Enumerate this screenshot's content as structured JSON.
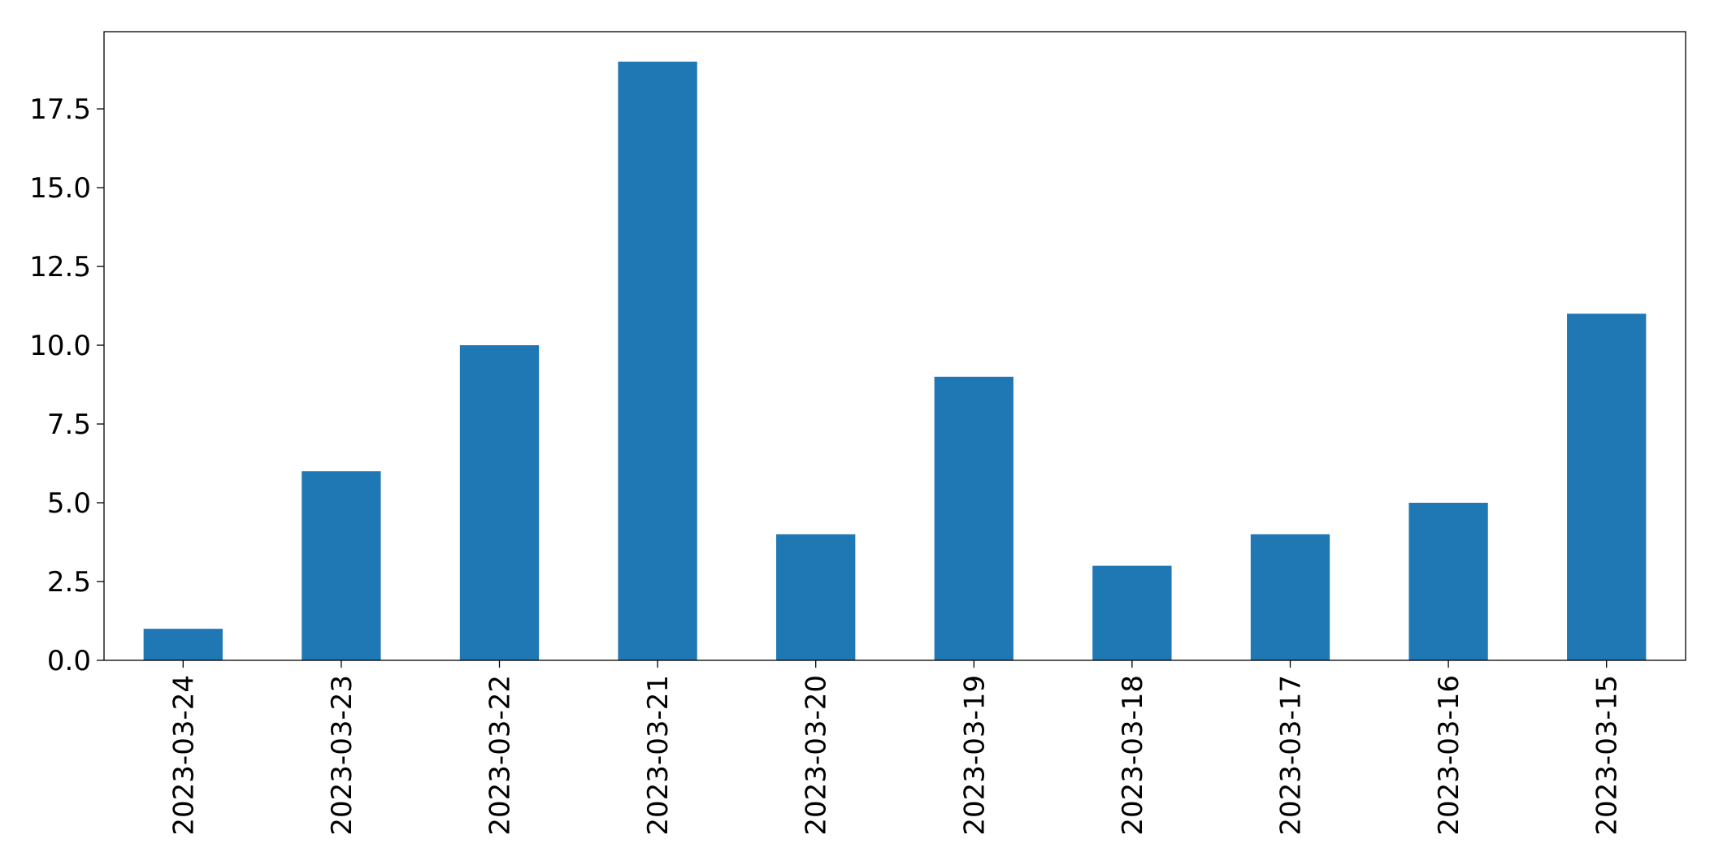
{
  "chart_data": {
    "type": "bar",
    "categories": [
      "2023-03-24",
      "2023-03-23",
      "2023-03-22",
      "2023-03-21",
      "2023-03-20",
      "2023-03-19",
      "2023-03-18",
      "2023-03-17",
      "2023-03-16",
      "2023-03-15"
    ],
    "values": [
      1,
      6,
      10,
      19,
      4,
      9,
      3,
      4,
      5,
      11
    ],
    "title": "",
    "xlabel": "",
    "ylabel": "",
    "ylim": [
      0,
      19.95
    ],
    "yticks": [
      0.0,
      2.5,
      5.0,
      7.5,
      10.0,
      12.5,
      15.0,
      17.5
    ],
    "ytick_labels": [
      "0.0",
      "2.5",
      "5.0",
      "7.5",
      "10.0",
      "12.5",
      "15.0",
      "17.5"
    ],
    "bar_color": "#1f77b4",
    "grid": false,
    "legend": "none"
  }
}
